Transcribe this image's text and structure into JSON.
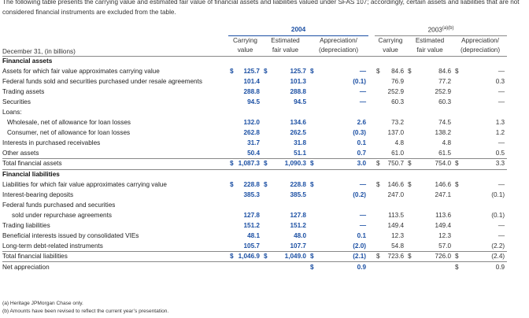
{
  "intro": "The following table presents the carrying value and estimated fair value of financial assets and liabilities valued under SFAS 107; accordingly, certain assets and liabilities that are not considered financial instruments are excluded from the table.",
  "year_2004": "2004",
  "year_2003": "2003",
  "year_2003_sup": "(a)(b)",
  "header_label": "December 31, (in billions)",
  "col_headers": {
    "carrying_1": "Carrying",
    "carrying_2": "value",
    "fair_1": "Estimated",
    "fair_2": "fair value",
    "appr_1": "Appreciation/",
    "appr_2": "(depreciation)"
  },
  "sections": {
    "assets": "Financial assets",
    "liabilities": "Financial liabilities",
    "loans": "Loans:",
    "fed_funds": "Federal funds purchased and securities"
  },
  "rows": [
    {
      "label": "Assets for which fair value approximates carrying value",
      "c04": "125.7",
      "f04": "125.7",
      "a04": "—",
      "c03": "84.6",
      "f03": "84.6",
      "a03": "—"
    },
    {
      "label": "Federal funds sold and securities purchased under resale agreements",
      "c04": "101.4",
      "f04": "101.3",
      "a04": "(0.1)",
      "c03": "76.9",
      "f03": "77.2",
      "a03": "0.3"
    },
    {
      "label": "Trading assets",
      "c04": "288.8",
      "f04": "288.8",
      "a04": "—",
      "c03": "252.9",
      "f03": "252.9",
      "a03": "—"
    },
    {
      "label": "Securities",
      "c04": "94.5",
      "f04": "94.5",
      "a04": "—",
      "c03": "60.3",
      "f03": "60.3",
      "a03": "—"
    },
    {
      "label": "Wholesale, net of allowance for loan losses",
      "c04": "132.0",
      "f04": "134.6",
      "a04": "2.6",
      "c03": "73.2",
      "f03": "74.5",
      "a03": "1.3"
    },
    {
      "label": "Consumer, net of allowance for loan losses",
      "c04": "262.8",
      "f04": "262.5",
      "a04": "(0.3)",
      "c03": "137.0",
      "f03": "138.2",
      "a03": "1.2"
    },
    {
      "label": "Interests in purchased receivables",
      "c04": "31.7",
      "f04": "31.8",
      "a04": "0.1",
      "c03": "4.8",
      "f03": "4.8",
      "a03": "—"
    },
    {
      "label": "Other assets",
      "c04": "50.4",
      "f04": "51.1",
      "a04": "0.7",
      "c03": "61.0",
      "f03": "61.5",
      "a03": "0.5"
    },
    {
      "label": "Total financial assets",
      "c04": "1,087.3",
      "f04": "1,090.3",
      "a04": "3.0",
      "c03": "750.7",
      "f03": "754.0",
      "a03": "3.3"
    },
    {
      "label": "Liabilities for which fair value approximates carrying value",
      "c04": "228.8",
      "f04": "228.8",
      "a04": "—",
      "c03": "146.6",
      "f03": "146.6",
      "a03": "—"
    },
    {
      "label": "Interest-bearing deposits",
      "c04": "385.3",
      "f04": "385.5",
      "a04": "(0.2)",
      "c03": "247.0",
      "f03": "247.1",
      "a03": "(0.1)"
    },
    {
      "label": "sold under repurchase agreements",
      "c04": "127.8",
      "f04": "127.8",
      "a04": "—",
      "c03": "113.5",
      "f03": "113.6",
      "a03": "(0.1)"
    },
    {
      "label": "Trading liabilities",
      "c04": "151.2",
      "f04": "151.2",
      "a04": "—",
      "c03": "149.4",
      "f03": "149.4",
      "a03": "—"
    },
    {
      "label": "Beneficial interests issued by consolidated VIEs",
      "c04": "48.1",
      "f04": "48.0",
      "a04": "0.1",
      "c03": "12.3",
      "f03": "12.3",
      "a03": "—"
    },
    {
      "label": "Long-term debt-related instruments",
      "c04": "105.7",
      "f04": "107.7",
      "a04": "(2.0)",
      "c03": "54.8",
      "f03": "57.0",
      "a03": "(2.2)"
    },
    {
      "label": "Total financial liabilities",
      "c04": "1,046.9",
      "f04": "1,049.0",
      "a04": "(2.1)",
      "c03": "723.6",
      "f03": "726.0",
      "a03": "(2.4)"
    },
    {
      "label": "Net appreciation",
      "a04": "0.9",
      "a03": "0.9"
    }
  ],
  "currency": "$",
  "notes": {
    "a": "(a) Heritage JPMorgan Chase only.",
    "b": "(b) Amounts have been revised to reflect the current year’s presentation."
  }
}
